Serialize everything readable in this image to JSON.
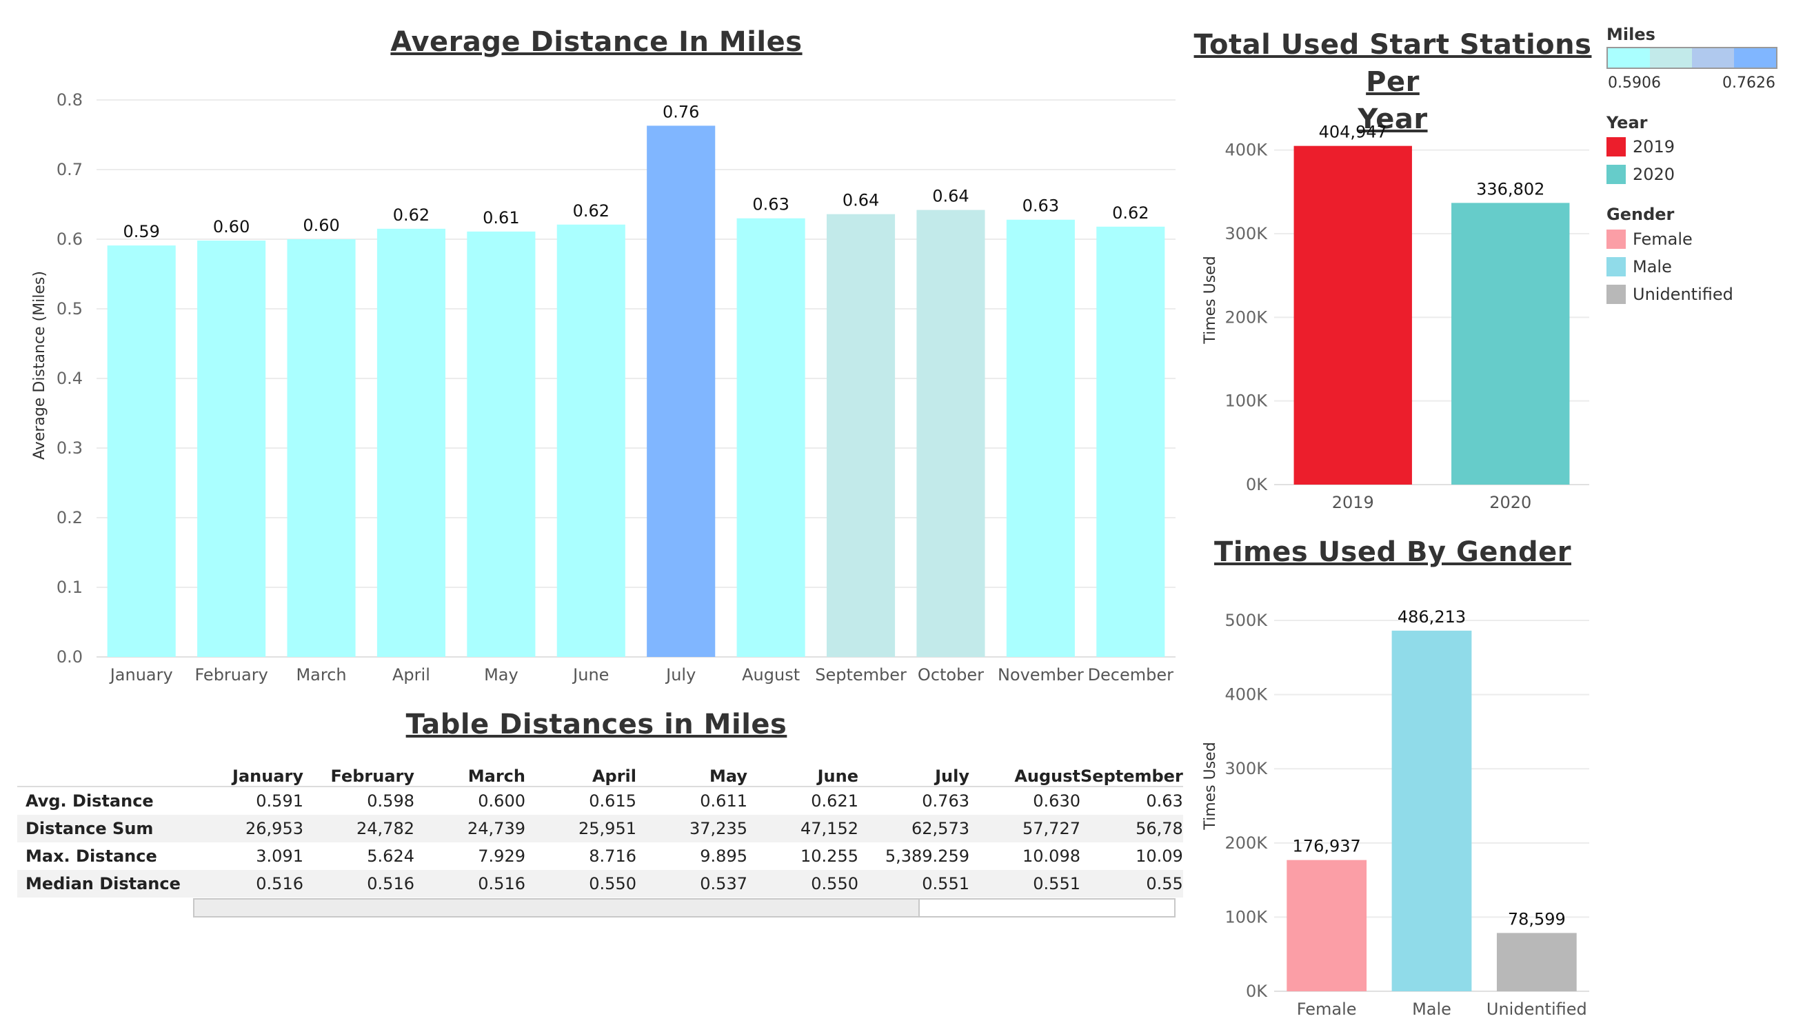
{
  "avg_chart": {
    "title": "Average Distance In Miles",
    "ylabel": "Average Distance (Miles)"
  },
  "table": {
    "title": "Table Distances in Miles",
    "columns": [
      "January",
      "February",
      "March",
      "April",
      "May",
      "June",
      "July",
      "August",
      "September"
    ],
    "rows": [
      {
        "label": "Avg. Distance",
        "values": [
          "0.591",
          "0.598",
          "0.600",
          "0.615",
          "0.611",
          "0.621",
          "0.763",
          "0.630",
          "0.63"
        ]
      },
      {
        "label": "Distance Sum",
        "values": [
          "26,953",
          "24,782",
          "24,739",
          "25,951",
          "37,235",
          "47,152",
          "62,573",
          "57,727",
          "56,78"
        ]
      },
      {
        "label": "Max. Distance",
        "values": [
          "3.091",
          "5.624",
          "7.929",
          "8.716",
          "9.895",
          "10.255",
          "5,389.259",
          "10.098",
          "10.09"
        ]
      },
      {
        "label": "Median Distance",
        "values": [
          "0.516",
          "0.516",
          "0.516",
          "0.550",
          "0.537",
          "0.550",
          "0.551",
          "0.551",
          "0.55"
        ]
      }
    ]
  },
  "year_chart": {
    "title_line1": "Total Used Start Stations Per",
    "title_line2": "Year",
    "ylabel": "Times Used"
  },
  "gender_chart": {
    "title": "Times Used By Gender",
    "ylabel": "Times Used"
  },
  "legend": {
    "miles_title": "Miles",
    "miles_min": "0.5906",
    "miles_max": "0.7626",
    "miles_colors": [
      "#aaffff",
      "#c2eaea",
      "#b0c9ee",
      "#80b6ff"
    ],
    "year_title": "Year",
    "year_items": [
      {
        "label": "2019",
        "color": "#ec1e2c"
      },
      {
        "label": "2020",
        "color": "#66ccca"
      }
    ],
    "gender_title": "Gender",
    "gender_items": [
      {
        "label": "Female",
        "color": "#fb9ea6"
      },
      {
        "label": "Male",
        "color": "#90dbe9"
      },
      {
        "label": "Unidentified",
        "color": "#b8b8b8"
      }
    ]
  },
  "chart_data": [
    {
      "type": "bar",
      "title": "Average Distance In Miles",
      "ylabel": "Average Distance (Miles)",
      "categories": [
        "January",
        "February",
        "March",
        "April",
        "May",
        "June",
        "July",
        "August",
        "September",
        "October",
        "November",
        "December"
      ],
      "values": [
        0.591,
        0.598,
        0.6,
        0.615,
        0.611,
        0.621,
        0.763,
        0.63,
        0.636,
        0.642,
        0.628,
        0.618
      ],
      "labels": [
        "0.59",
        "0.60",
        "0.60",
        "0.62",
        "0.61",
        "0.62",
        "0.76",
        "0.63",
        "0.64",
        "0.64",
        "0.63",
        "0.62"
      ],
      "colors": [
        "#aaffff",
        "#aaffff",
        "#aaffff",
        "#aaffff",
        "#aaffff",
        "#aaffff",
        "#80b6ff",
        "#aaffff",
        "#c2eaea",
        "#c2eaea",
        "#aaffff",
        "#aaffff"
      ],
      "ylim": [
        0,
        0.8
      ],
      "yticks": [
        0.0,
        0.1,
        0.2,
        0.3,
        0.4,
        0.5,
        0.6,
        0.7,
        0.8
      ],
      "ytick_labels": [
        "0.0",
        "0.1",
        "0.2",
        "0.3",
        "0.4",
        "0.5",
        "0.6",
        "0.7",
        "0.8"
      ],
      "grid": true
    },
    {
      "type": "bar",
      "title": "Total Used Start Stations Per Year",
      "ylabel": "Times Used",
      "categories": [
        "2019",
        "2020"
      ],
      "values": [
        404947,
        336802
      ],
      "labels": [
        "404,947",
        "336,802"
      ],
      "colors": [
        "#ec1e2c",
        "#66ccca"
      ],
      "ylim": [
        0,
        450000
      ],
      "yticks": [
        0,
        100000,
        200000,
        300000,
        400000
      ],
      "ytick_labels": [
        "0K",
        "100K",
        "200K",
        "300K",
        "400K"
      ],
      "grid": true
    },
    {
      "type": "bar",
      "title": "Times Used By Gender",
      "ylabel": "Times Used",
      "categories": [
        "Female",
        "Male",
        "Unidentified"
      ],
      "values": [
        176937,
        486213,
        78599
      ],
      "labels": [
        "176,937",
        "486,213",
        "78,599"
      ],
      "colors": [
        "#fb9ea6",
        "#90dbe9",
        "#b8b8b8"
      ],
      "ylim": [
        0,
        540000
      ],
      "yticks": [
        0,
        100000,
        200000,
        300000,
        400000,
        500000
      ],
      "ytick_labels": [
        "0K",
        "100K",
        "200K",
        "300K",
        "400K",
        "500K"
      ],
      "grid": true
    }
  ]
}
